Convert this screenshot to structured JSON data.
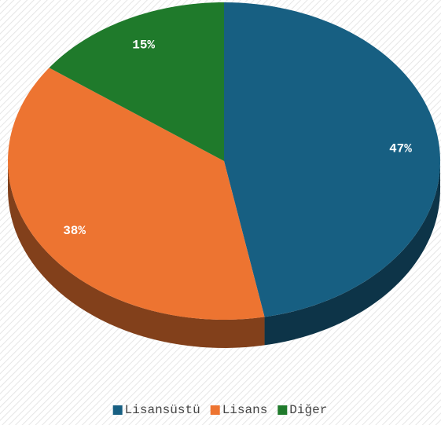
{
  "chart_data": {
    "type": "pie",
    "categories": [
      "Lisansüstü",
      "Lisans",
      "Diğer"
    ],
    "values": [
      47,
      38,
      15
    ],
    "value_labels": [
      "47%",
      "38%",
      "15%"
    ],
    "colors": [
      "#175f82",
      "#ed7431",
      "#1f7a2b"
    ],
    "legend": "bottom"
  }
}
